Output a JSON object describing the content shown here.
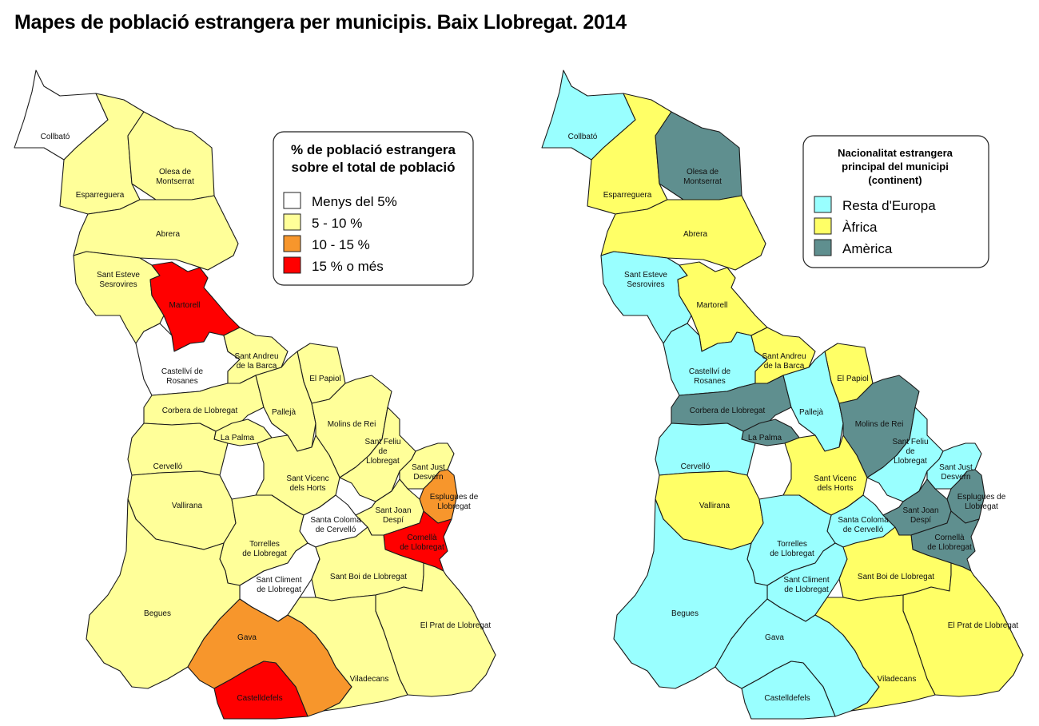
{
  "title": "Mapes de població estrangera per municipis. Baix Llobregat. 2014",
  "colors": {
    "menys5": "#ffffff",
    "c5_10": "#ffff99",
    "c10_15": "#f7962c",
    "c15mes": "#ff0000",
    "europa": "#99ffff",
    "africa": "#ffff66",
    "america": "#5f8f8f"
  },
  "map1": {
    "legend": {
      "title_line1": "% de població estrangera",
      "title_line2": "sobre el total de població",
      "items": [
        {
          "label": "Menys del 5%",
          "class": "menys5"
        },
        {
          "label": "5 - 10 %",
          "class": "c5_10"
        },
        {
          "label": "10 - 15 %",
          "class": "c10_15"
        },
        {
          "label": "15 % o més",
          "class": "c15mes"
        }
      ]
    },
    "values": {
      "collbato": "menys5",
      "esparreguera": "c5_10",
      "olesa": "c5_10",
      "abrera": "c5_10",
      "esteve": "c5_10",
      "martorell": "c15mes",
      "castellvi": "menys5",
      "andreu": "c5_10",
      "papiol": "c5_10",
      "corbera": "c5_10",
      "palleja": "c5_10",
      "molins": "c5_10",
      "palma": "c5_10",
      "cervello": "c5_10",
      "vallirana": "c5_10",
      "feliu": "c5_10",
      "vicenc": "c5_10",
      "justdesvern": "c5_10",
      "esplugues": "c10_15",
      "coloma": "menys5",
      "joandespi": "c5_10",
      "cornella": "c15mes",
      "torrelles": "c5_10",
      "climent": "menys5",
      "boi": "c5_10",
      "begues": "c5_10",
      "prat": "c5_10",
      "gava": "c10_15",
      "viladecans": "c5_10",
      "castelldefels": "c15mes"
    }
  },
  "map2": {
    "legend": {
      "title_line1": "Nacionalitat estrangera",
      "title_line2": "principal del municipi",
      "title_line3": "(continent)",
      "items": [
        {
          "label": "Resta d'Europa",
          "class": "europa"
        },
        {
          "label": "Àfrica",
          "class": "africa"
        },
        {
          "label": "Amèrica",
          "class": "america"
        }
      ]
    },
    "values": {
      "collbato": "europa",
      "esparreguera": "africa",
      "olesa": "america",
      "abrera": "africa",
      "esteve": "europa",
      "martorell": "africa",
      "castellvi": "europa",
      "andreu": "africa",
      "papiol": "africa",
      "corbera": "america",
      "palleja": "europa",
      "molins": "america",
      "palma": "america",
      "cervello": "europa",
      "vallirana": "africa",
      "feliu": "europa",
      "vicenc": "africa",
      "justdesvern": "europa",
      "esplugues": "america",
      "coloma": "europa",
      "joandespi": "america",
      "cornella": "america",
      "torrelles": "europa",
      "climent": "europa",
      "boi": "africa",
      "begues": "europa",
      "prat": "africa",
      "gava": "europa",
      "viladecans": "africa",
      "castelldefels": "europa"
    }
  },
  "municipalities": [
    {
      "id": "collbato",
      "lines": [
        "Collbató"
      ]
    },
    {
      "id": "esparreguera",
      "lines": [
        "Esparreguera"
      ]
    },
    {
      "id": "olesa",
      "lines": [
        "Olesa de",
        "Montserrat"
      ]
    },
    {
      "id": "abrera",
      "lines": [
        "Abrera"
      ]
    },
    {
      "id": "esteve",
      "lines": [
        "Sant Esteve",
        "Sesrovires"
      ]
    },
    {
      "id": "martorell",
      "lines": [
        "Martorell"
      ]
    },
    {
      "id": "castellvi",
      "lines": [
        "Castellví de",
        "Rosanes"
      ]
    },
    {
      "id": "andreu",
      "lines": [
        "Sant Andreu",
        "de la Barca"
      ]
    },
    {
      "id": "papiol",
      "lines": [
        "El Papiol"
      ]
    },
    {
      "id": "corbera",
      "lines": [
        "Corbera de Llobregat"
      ]
    },
    {
      "id": "palleja",
      "lines": [
        "Pallejà"
      ]
    },
    {
      "id": "molins",
      "lines": [
        "Molins de Rei"
      ]
    },
    {
      "id": "palma",
      "lines": [
        "La Palma"
      ]
    },
    {
      "id": "cervello",
      "lines": [
        "Cervelló"
      ]
    },
    {
      "id": "vallirana",
      "lines": [
        "Vallirana"
      ]
    },
    {
      "id": "feliu",
      "lines": [
        "Sant Feliu",
        "de",
        "Llobregat"
      ]
    },
    {
      "id": "vicenc",
      "lines": [
        "Sant Vicenc",
        "dels Horts"
      ]
    },
    {
      "id": "justdesvern",
      "lines": [
        "Sant Just",
        "Desvern"
      ]
    },
    {
      "id": "esplugues",
      "lines": [
        "Esplugues de",
        "Llobregat"
      ]
    },
    {
      "id": "coloma",
      "lines": [
        "Santa Coloma",
        "de Cervelló"
      ]
    },
    {
      "id": "joandespi",
      "lines": [
        "Sant Joan",
        "Despí"
      ]
    },
    {
      "id": "cornella",
      "lines": [
        "Cornellà",
        "de Llobregat"
      ]
    },
    {
      "id": "torrelles",
      "lines": [
        "Torrelles",
        "de Llobregat"
      ]
    },
    {
      "id": "climent",
      "lines": [
        "Sant Climent",
        "de Llobregat"
      ]
    },
    {
      "id": "boi",
      "lines": [
        "Sant Boi de Llobregat"
      ]
    },
    {
      "id": "begues",
      "lines": [
        "Begues"
      ]
    },
    {
      "id": "prat",
      "lines": [
        "El Prat de Llobregat"
      ]
    },
    {
      "id": "gava",
      "lines": [
        "Gava"
      ]
    },
    {
      "id": "viladecans",
      "lines": [
        "Viladecans"
      ]
    },
    {
      "id": "castelldefels",
      "lines": [
        "Castelldefels"
      ]
    }
  ]
}
